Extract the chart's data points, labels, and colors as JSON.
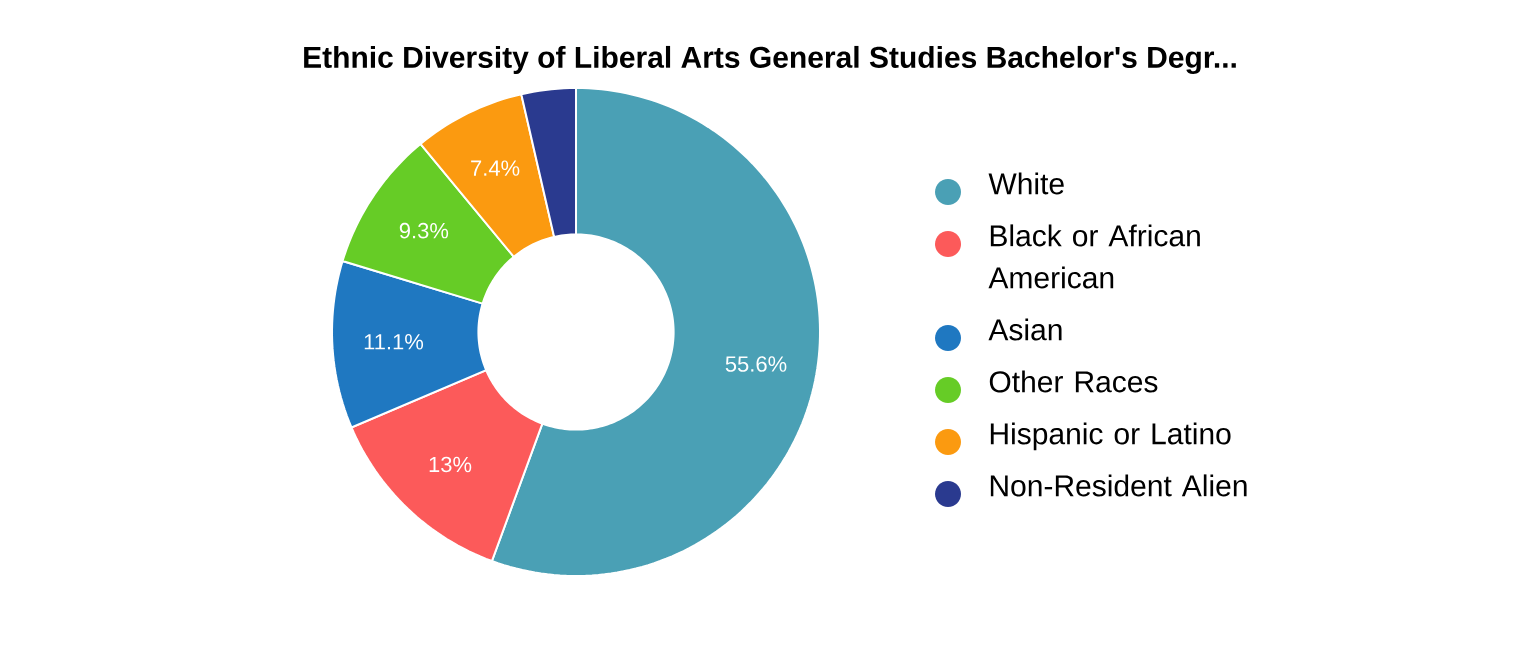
{
  "chart_data": {
    "type": "donut",
    "title": "Ethnic Diversity of Liberal Arts General Studies Bachelor's Degr...",
    "categories": [
      "White",
      "Black or African American",
      "Asian",
      "Other Races",
      "Hispanic or Latino",
      "Non-Resident Alien"
    ],
    "values": [
      55.6,
      13,
      11.1,
      9.3,
      7.4,
      3.6
    ],
    "colors": [
      "#4aa0b5",
      "#fc5a5a",
      "#1f78c1",
      "#66cc26",
      "#fb9a10",
      "#2a3a8f"
    ],
    "value_labels": [
      "55.6%",
      "13%",
      "11.1%",
      "9.3%",
      "7.4%",
      null
    ],
    "legend": "right"
  }
}
